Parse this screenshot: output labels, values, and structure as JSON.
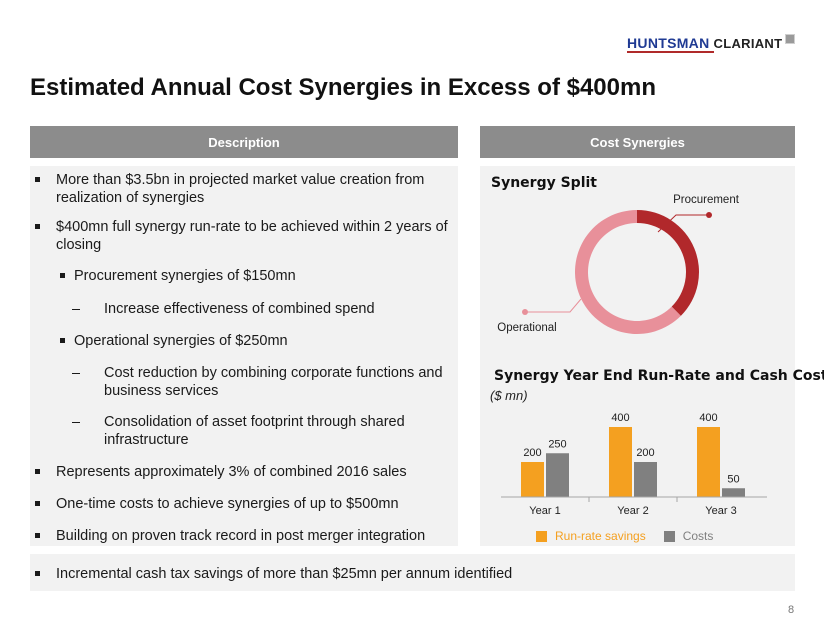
{
  "logo": {
    "part1": "HUNTSMAN",
    "part2": "CLARIANT"
  },
  "title": "Estimated Annual Cost Synergies in Excess of $400mn",
  "description": {
    "header": "Description",
    "bullets": [
      {
        "text": "More than $3.5bn in projected market value creation from realization of synergies"
      },
      {
        "text": "$400mn full synergy run-rate to be achieved within 2 years of closing"
      },
      {
        "text": "Procurement synergies of $150mn"
      },
      {
        "text": "Increase effectiveness of combined spend"
      },
      {
        "text": "Operational synergies of $250mn"
      },
      {
        "text": "Cost reduction by combining corporate functions and business services"
      },
      {
        "text": "Consolidation of asset footprint through shared infrastructure"
      },
      {
        "text": "Represents approximately 3% of combined 2016 sales"
      },
      {
        "text": "One-time costs to achieve synergies of up to $500mn"
      },
      {
        "text": "Building on proven track record in post merger integration"
      }
    ],
    "footer_bullet": "Incremental cash tax savings of more than $25mn per annum identified"
  },
  "synergies": {
    "header": "Cost Synergies"
  },
  "page_number": "8",
  "colors": {
    "procurement": "#b1282b",
    "operational": "#e8909a",
    "runrate": "#f4a020",
    "costs": "#808080"
  },
  "chart_data": [
    {
      "type": "pie",
      "title": "Synergy Split",
      "categories": [
        "Procurement",
        "Operational"
      ],
      "values": [
        150,
        250
      ]
    },
    {
      "type": "bar",
      "title": "Synergy Year End Run-Rate and Cash Costs",
      "subtitle": "($ mn)",
      "categories": [
        "Year 1",
        "Year 2",
        "Year 3"
      ],
      "series": [
        {
          "name": "Run-rate savings",
          "values": [
            200,
            400,
            400
          ]
        },
        {
          "name": "Costs",
          "values": [
            250,
            200,
            50
          ]
        }
      ],
      "ylim": [
        0,
        400
      ],
      "legend": "bottom"
    }
  ]
}
